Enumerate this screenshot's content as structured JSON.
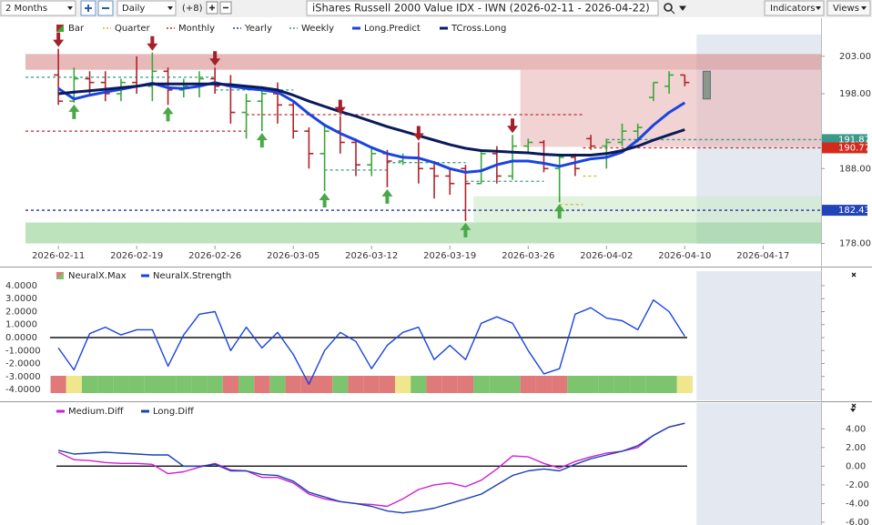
{
  "toolbar": {
    "period": "2 Months",
    "interval": "Daily",
    "offset": "(+8)",
    "title": "iShares Russell 2000 Value IDX - IWN (2026-02-11 - 2026-04-22)",
    "indicators": "Indicators",
    "views": "Views"
  },
  "forecast_start": 40.75,
  "price_panel": {
    "xlim": [
      -2.1,
      48.7
    ],
    "ylim": [
      177.7,
      205.9
    ],
    "yticks": [
      {
        "value": 178,
        "label": "178.00"
      },
      {
        "value": 188,
        "label": "188.00"
      },
      {
        "value": 198,
        "label": "198.00"
      },
      {
        "value": 203,
        "label": "203.00"
      }
    ],
    "xticks": [
      {
        "value": 0,
        "label": "2026-02-11"
      },
      {
        "value": 5,
        "label": "2026-02-19"
      },
      {
        "value": 10,
        "label": "2026-02-26"
      },
      {
        "value": 15,
        "label": "2026-03-05"
      },
      {
        "value": 20,
        "label": "2026-03-12"
      },
      {
        "value": 25,
        "label": "2026-03-19"
      },
      {
        "value": 30,
        "label": "2026-03-26"
      },
      {
        "value": 35,
        "label": "2026-04-02"
      },
      {
        "value": 40,
        "label": "2026-04-10"
      },
      {
        "value": 45,
        "label": "2026-04-17"
      }
    ],
    "zones": [
      {
        "from": 201.2,
        "to": 203.3,
        "x0": -2.1,
        "x1": 48.7,
        "color": "#d98a8a"
      },
      {
        "from": 190.9,
        "to": 201.2,
        "x0": 29.5,
        "x1": 48.7,
        "color": "#e8b5b5"
      },
      {
        "from": 178,
        "to": 180.8,
        "x0": -2.1,
        "x1": 48.7,
        "color": "#8fd08f"
      },
      {
        "from": 180.8,
        "to": 184.3,
        "x0": 26.5,
        "x1": 48.7,
        "color": "#cdebc9"
      }
    ],
    "series": [
      {
        "name": "Bar",
        "kind": "bar",
        "up_color": "#3aa63a",
        "down_color": "#b0232a",
        "open": [
          200.5,
          197,
          200,
          199.5,
          198,
          199.5,
          199,
          201,
          198.5,
          199,
          200,
          199,
          195.5,
          197,
          198,
          196.5,
          193,
          190,
          193,
          191.5,
          188.5,
          190,
          189,
          189.5,
          188,
          187,
          188,
          186,
          190,
          187,
          191,
          191.5,
          188,
          189.5,
          192,
          191,
          191.5,
          193,
          197.5,
          199,
          200.5
        ],
        "high": [
          204,
          201.5,
          201,
          201,
          200,
          203,
          203.5,
          201.5,
          200,
          201,
          201.5,
          200.5,
          198,
          199,
          199.5,
          197,
          193.5,
          194,
          195,
          192,
          191,
          190.5,
          190,
          191.5,
          189,
          188,
          188.5,
          190.5,
          191,
          192.5,
          192,
          191.8,
          190,
          190,
          192.5,
          192,
          194,
          194,
          199.5,
          201,
          200.5
        ],
        "low": [
          196.5,
          196.8,
          198,
          197,
          197,
          198,
          197,
          196.5,
          197.5,
          197.5,
          198,
          194,
          192,
          193,
          194,
          192,
          188,
          185,
          190,
          187,
          187,
          185.5,
          188.5,
          186,
          184,
          184.5,
          181,
          186,
          186,
          186.5,
          190,
          187.5,
          183.5,
          187,
          190.5,
          188,
          191,
          191.5,
          197,
          198,
          199
        ],
        "close": [
          197,
          200,
          199.5,
          198,
          199.5,
          199,
          201,
          198.5,
          199,
          200,
          199,
          195.5,
          197,
          198,
          196.5,
          193,
          190,
          193,
          191.5,
          188.5,
          190,
          189,
          189.5,
          188,
          187,
          186,
          186,
          190,
          187,
          191,
          191.5,
          188,
          189.5,
          188,
          191,
          191.5,
          193,
          193.5,
          199.5,
          200.5,
          199.5
        ]
      },
      {
        "name": "Quarter",
        "kind": "level",
        "color": "#d4b23a",
        "segments": [
          [
            32,
            33.5,
            183.2
          ],
          [
            33.5,
            34.5,
            187
          ]
        ]
      },
      {
        "name": "Monthly",
        "kind": "level",
        "color": "#c0282c",
        "segments": [
          [
            -2.1,
            12,
            193
          ],
          [
            12,
            33.5,
            195.2
          ],
          [
            33.5,
            48.7,
            190.77
          ]
        ]
      },
      {
        "name": "Yearly",
        "kind": "level",
        "color": "#2233aa",
        "segments": [
          [
            -2.1,
            48.7,
            182.43
          ]
        ]
      },
      {
        "name": "Weekly",
        "kind": "level",
        "color": "#3a9a8a",
        "segments": [
          [
            -2.1,
            10,
            200.2
          ],
          [
            10,
            15,
            198.5
          ],
          [
            17,
            21,
            187.8
          ],
          [
            21,
            26,
            188.8
          ],
          [
            26,
            31,
            186.3
          ],
          [
            35,
            48.7,
            191.87
          ]
        ]
      },
      {
        "name": "Long.Predict",
        "kind": "line",
        "color": "#1a44e0",
        "values": [
          198.7,
          197.3,
          197.8,
          198.2,
          198.6,
          199,
          199.4,
          198.8,
          198.7,
          199,
          199.5,
          199,
          198.7,
          198.5,
          198.2,
          197,
          195.3,
          193.8,
          192.7,
          191.8,
          190.8,
          190,
          189.5,
          189.4,
          188.8,
          188,
          187.5,
          187.7,
          188.5,
          189,
          189,
          188.7,
          188.3,
          188.8,
          189.3,
          189.5,
          190.2,
          191.8,
          193.8,
          195.5,
          196.8
        ]
      },
      {
        "name": "TCross.Long",
        "kind": "line",
        "color": "#0a1a5a",
        "values": [
          198,
          198.2,
          198.4,
          198.6,
          198.8,
          199,
          199.3,
          199.3,
          199.3,
          199.3,
          199.3,
          199.2,
          199,
          198.8,
          198.5,
          197.8,
          197,
          196.3,
          195.6,
          195,
          194.3,
          193.6,
          193,
          192.4,
          191.8,
          191.2,
          190.7,
          190.4,
          190.3,
          190.2,
          190.1,
          189.9,
          189.8,
          189.8,
          189.8,
          190,
          190.4,
          191,
          191.8,
          192.5,
          193.2
        ]
      }
    ],
    "signals_down": [
      0,
      6,
      10,
      18,
      23,
      29
    ],
    "signals_up": [
      1,
      7,
      13,
      17,
      21,
      26,
      32
    ],
    "forecast_bar": {
      "low": 197.3,
      "high": 201
    },
    "badges": [
      {
        "value": 191.87,
        "color": "#3a9a8a"
      },
      {
        "value": 190.77,
        "color": "#d42a1e"
      },
      {
        "value": 182.43,
        "color": "#2244bb"
      }
    ]
  },
  "neural_panel": {
    "ylim": [
      -4.84,
      5.12
    ],
    "yticks": [
      {
        "value": 4,
        "label": "4.0000"
      },
      {
        "value": 3,
        "label": "3.0000"
      },
      {
        "value": 2,
        "label": "2.0000"
      },
      {
        "value": 1,
        "label": "1.0000"
      },
      {
        "value": 0,
        "label": "0.0000"
      },
      {
        "value": -1,
        "label": "-1.0000"
      },
      {
        "value": -2,
        "label": "-2.0000"
      },
      {
        "value": -3,
        "label": "-3.0000"
      },
      {
        "value": -4,
        "label": "-4.0000"
      }
    ],
    "series": [
      {
        "name": "NeuralX.Max",
        "kind": "state",
        "colors": {
          "1": "#7cc46e",
          "0": "#f0e68c",
          "-1": "#e07a7a"
        },
        "values": [
          -1,
          0,
          1,
          1,
          1,
          1,
          1,
          1,
          1,
          1,
          1,
          -1,
          1,
          -1,
          1,
          -1,
          -1,
          -1,
          1,
          -1,
          -1,
          -1,
          0,
          1,
          -1,
          -1,
          -1,
          1,
          1,
          1,
          -1,
          -1,
          -1,
          1,
          1,
          1,
          1,
          1,
          1,
          1,
          0
        ]
      },
      {
        "name": "NeuralX.Strength",
        "kind": "line",
        "color": "#1a44e0",
        "values": [
          -0.8,
          -2.5,
          0.3,
          0.8,
          0.2,
          0.6,
          0.6,
          -2.2,
          0.2,
          1.8,
          2,
          -1,
          0.8,
          -0.8,
          0.4,
          -1.3,
          -3.6,
          -1,
          0.4,
          -0.3,
          -2.4,
          -0.6,
          0.4,
          0.8,
          -1.7,
          -0.6,
          -1.7,
          1.1,
          1.6,
          1.1,
          -1,
          -2.8,
          -2.4,
          1.8,
          2.3,
          1.5,
          1.3,
          0.6,
          2.9,
          2,
          0.1
        ]
      }
    ]
  },
  "diff_panel": {
    "ylim": [
      -6.3,
      6.76
    ],
    "yticks": [
      {
        "value": 4,
        "label": "4.00"
      },
      {
        "value": 2,
        "label": "2.00"
      },
      {
        "value": 0,
        "label": "0.00"
      },
      {
        "value": -2,
        "label": "-2.00"
      },
      {
        "value": -4,
        "label": "-4.00"
      },
      {
        "value": -6,
        "label": "-6.00"
      }
    ],
    "series": [
      {
        "name": "Medium.Diff",
        "kind": "line",
        "color": "#d020d0",
        "values": [
          1.5,
          0.7,
          0.6,
          0.4,
          0.3,
          0.3,
          0.2,
          -0.8,
          -0.6,
          -0.1,
          0.3,
          -0.4,
          -0.5,
          -1.2,
          -1.2,
          -1.8,
          -3,
          -3.5,
          -3.8,
          -4,
          -4.1,
          -4.3,
          -3.5,
          -2.5,
          -2,
          -1.8,
          -2.2,
          -1.5,
          -0.3,
          1.1,
          1,
          0.3,
          -0.2,
          0.5,
          1,
          1.4,
          1.6,
          2,
          3.3,
          4.2,
          4.6
        ]
      },
      {
        "name": "Long.Diff",
        "kind": "line",
        "color": "#1a44b0",
        "values": [
          1.7,
          1.3,
          1.4,
          1.5,
          1.4,
          1.3,
          1.2,
          1.2,
          0,
          0,
          0.2,
          -0.5,
          -0.5,
          -0.9,
          -1,
          -1.6,
          -2.8,
          -3.3,
          -3.8,
          -4,
          -4.3,
          -4.8,
          -5,
          -4.8,
          -4.5,
          -4,
          -3.5,
          -3,
          -2,
          -1,
          -0.5,
          -0.3,
          -0.5,
          0.2,
          0.8,
          1.2,
          1.6,
          2.2,
          3.3,
          4.2,
          4.6
        ]
      }
    ]
  }
}
